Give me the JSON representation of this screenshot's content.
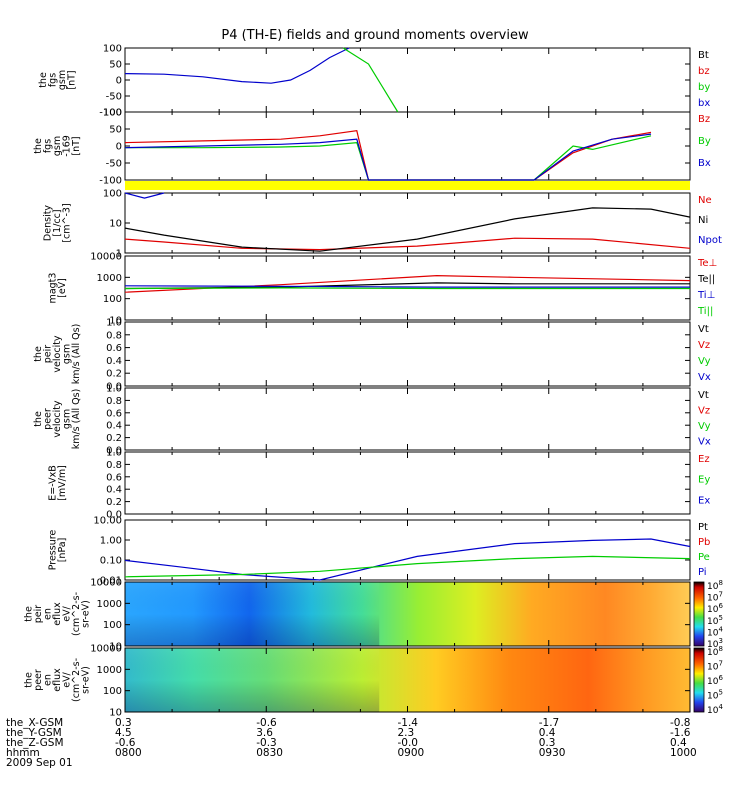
{
  "title": "P4 (TH-E) fields and ground moments overview",
  "colors": {
    "black": "#000000",
    "red": "#e00000",
    "green": "#00cc00",
    "blue": "#0000cc",
    "yellow": "#ffff00"
  },
  "panels": [
    {
      "id": "fgs",
      "ylabel": [
        "the",
        "fgs",
        "gsm",
        "[nT]"
      ],
      "ticks": [
        "100",
        "50",
        "0",
        "-50",
        "-100"
      ],
      "legend": [
        {
          "t": "Bt",
          "c": "black"
        },
        {
          "t": "bz",
          "c": "red"
        },
        {
          "t": "by",
          "c": "green"
        },
        {
          "t": "bx",
          "c": "blue"
        }
      ]
    },
    {
      "id": "fgs169",
      "ylabel": [
        "the",
        "fgs",
        "gsm",
        "-169",
        "[nT]"
      ],
      "ticks": [
        "100",
        "50",
        "0",
        "-50",
        "-100"
      ],
      "legend": [
        {
          "t": "Bz",
          "c": "red"
        },
        {
          "t": "By",
          "c": "green"
        },
        {
          "t": "Bx",
          "c": "blue"
        }
      ]
    },
    {
      "id": "density",
      "ylabel": [
        "Density",
        "[1/cc]",
        "[cm^-3]"
      ],
      "ticks": [
        "100",
        "10",
        "1"
      ],
      "legend": [
        {
          "t": "Ne",
          "c": "red"
        },
        {
          "t": "Ni",
          "c": "black"
        },
        {
          "t": "Npot",
          "c": "blue"
        }
      ]
    },
    {
      "id": "temp",
      "ylabel": [
        "magt3",
        "[eV]"
      ],
      "ticks": [
        "10000",
        "1000",
        "100",
        "10"
      ],
      "legend": [
        {
          "t": "Te⊥",
          "c": "red"
        },
        {
          "t": "Te||",
          "c": "black"
        },
        {
          "t": "Ti⊥",
          "c": "blue"
        },
        {
          "t": "Ti||",
          "c": "green"
        }
      ]
    },
    {
      "id": "peir_vel",
      "ylabel": [
        "the",
        "peir",
        "velocity",
        "gsm",
        "km/s (All Qs)"
      ],
      "ticks": [
        "1.0",
        "0.8",
        "0.6",
        "0.4",
        "0.2",
        "0.0"
      ],
      "legend": [
        {
          "t": "Vt",
          "c": "black"
        },
        {
          "t": "Vz",
          "c": "red"
        },
        {
          "t": "Vy",
          "c": "green"
        },
        {
          "t": "Vx",
          "c": "blue"
        }
      ]
    },
    {
      "id": "peer_vel",
      "ylabel": [
        "the",
        "peer",
        "velocity",
        "gsm",
        "km/s (All Qs)"
      ],
      "ticks": [
        "1.0",
        "0.8",
        "0.6",
        "0.4",
        "0.2",
        "0.0"
      ],
      "legend": [
        {
          "t": "Vt",
          "c": "black"
        },
        {
          "t": "Vz",
          "c": "red"
        },
        {
          "t": "Vy",
          "c": "green"
        },
        {
          "t": "Vx",
          "c": "blue"
        }
      ]
    },
    {
      "id": "efield",
      "ylabel": [
        "E=-VxB",
        "[mV/m]"
      ],
      "ticks": [
        "1.0",
        "0.8",
        "0.6",
        "0.4",
        "0.2",
        "0.0"
      ],
      "legend": [
        {
          "t": "Ez",
          "c": "red"
        },
        {
          "t": "Ey",
          "c": "green"
        },
        {
          "t": "Ex",
          "c": "blue"
        }
      ]
    },
    {
      "id": "pressure",
      "ylabel": [
        "Pressure",
        "[nPa]"
      ],
      "ticks": [
        "10.00",
        "1.00",
        "0.10",
        "0.01"
      ],
      "legend": [
        {
          "t": "Pt",
          "c": "black"
        },
        {
          "t": "Pb",
          "c": "red"
        },
        {
          "t": "Pe",
          "c": "green"
        },
        {
          "t": "Pi",
          "c": "blue"
        }
      ]
    },
    {
      "id": "peir_spec",
      "ylabel": [
        "the",
        "peir",
        "en",
        "eflux",
        "eV/",
        "(cm^2-s-",
        "sr-eV)"
      ],
      "ticks": [
        "10000",
        "1000",
        "100",
        "10"
      ],
      "colorbar": [
        "10^8",
        "10^7",
        "10^6",
        "10^5",
        "10^4",
        "10^3"
      ]
    },
    {
      "id": "peer_spec",
      "ylabel": [
        "the",
        "peer",
        "en",
        "eflux",
        "eV/",
        "(cm^2-s-",
        "sr-eV)"
      ],
      "ticks": [
        "10000",
        "1000",
        "100",
        "10"
      ],
      "colorbar": [
        "10^8",
        "10^7",
        "10^6",
        "10^5",
        "10^4"
      ]
    }
  ],
  "footer": {
    "rows": [
      {
        "label": "the_X-GSM",
        "values": [
          "0.3",
          "-0.6",
          "-1.4",
          "-1.7",
          "-0.8"
        ]
      },
      {
        "label": "the_Y-GSM",
        "values": [
          "4.5",
          "3.6",
          "2.3",
          "0.4",
          "-1.6"
        ]
      },
      {
        "label": "the_Z-GSM",
        "values": [
          "-0.6",
          "-0.3",
          "-0.0",
          "0.3",
          "0.4"
        ]
      },
      {
        "label": "hhmm",
        "values": [
          "0800",
          "0830",
          "0900",
          "0930",
          "1000"
        ]
      }
    ],
    "date": "2009 Sep 01"
  },
  "chart_data": {
    "type": "line",
    "title": "P4 (TH-E) fields and ground moments overview",
    "x_ticks": [
      "0800",
      "0830",
      "0900",
      "0930",
      "1000"
    ],
    "x_range_hhmm": [
      "0800",
      "1000"
    ],
    "panels": [
      {
        "name": "fgs gsm",
        "unit": "nT",
        "ylim": [
          -100,
          100
        ],
        "series": [
          {
            "name": "bx",
            "color": "blue",
            "points": [
              [
                0,
                20
              ],
              [
                20,
                18
              ],
              [
                40,
                10
              ],
              [
                60,
                -5
              ],
              [
                75,
                -10
              ],
              [
                85,
                0
              ],
              [
                95,
                30
              ],
              [
                105,
                70
              ],
              [
                115,
                100
              ]
            ]
          },
          {
            "name": "by",
            "color": "green",
            "points": [
              [
                112,
                100
              ],
              [
                125,
                50
              ],
              [
                140,
                -100
              ]
            ]
          }
        ]
      },
      {
        "name": "fgs gsm -169",
        "unit": "nT",
        "ylim": [
          -100,
          100
        ],
        "series": [
          {
            "name": "Bz",
            "color": "red",
            "points": [
              [
                0,
                10
              ],
              [
                40,
                15
              ],
              [
                80,
                20
              ],
              [
                100,
                30
              ],
              [
                119,
                45
              ],
              [
                125,
                -100
              ],
              [
                210,
                -100
              ],
              [
                230,
                -20
              ],
              [
                250,
                20
              ],
              [
                270,
                40
              ]
            ]
          },
          {
            "name": "By",
            "color": "green",
            "points": [
              [
                0,
                -5
              ],
              [
                40,
                -5
              ],
              [
                80,
                -3
              ],
              [
                100,
                0
              ],
              [
                119,
                10
              ],
              [
                125,
                -100
              ],
              [
                210,
                -100
              ],
              [
                230,
                0
              ],
              [
                240,
                -10
              ],
              [
                270,
                30
              ]
            ]
          },
          {
            "name": "Bx",
            "color": "blue",
            "points": [
              [
                0,
                -5
              ],
              [
                40,
                0
              ],
              [
                80,
                5
              ],
              [
                100,
                10
              ],
              [
                119,
                20
              ],
              [
                125,
                -100
              ],
              [
                210,
                -100
              ],
              [
                230,
                -15
              ],
              [
                250,
                20
              ],
              [
                270,
                35
              ]
            ]
          }
        ]
      },
      {
        "name": "Density",
        "unit": "cm^-3",
        "yscale": "log",
        "ylim": [
          0.5,
          200
        ],
        "series": [
          {
            "name": "Ne",
            "color": "red",
            "points": [
              [
                0,
                2
              ],
              [
                20,
                1.5
              ],
              [
                60,
                0.8
              ],
              [
                100,
                0.7
              ],
              [
                150,
                1
              ],
              [
                200,
                2.2
              ],
              [
                240,
                2
              ],
              [
                290,
                0.8
              ]
            ]
          },
          {
            "name": "Ni",
            "color": "black",
            "points": [
              [
                0,
                6
              ],
              [
                20,
                3
              ],
              [
                60,
                0.9
              ],
              [
                100,
                0.6
              ],
              [
                150,
                2
              ],
              [
                200,
                15
              ],
              [
                240,
                45
              ],
              [
                270,
                40
              ],
              [
                290,
                18
              ]
            ]
          },
          {
            "name": "Npot",
            "color": "blue",
            "points": [
              [
                0,
                200
              ],
              [
                10,
                120
              ],
              [
                20,
                200
              ]
            ]
          }
        ]
      },
      {
        "name": "magt3",
        "unit": "eV",
        "yscale": "log",
        "ylim": [
          10,
          10000
        ],
        "series": [
          {
            "name": "Te⊥",
            "color": "red",
            "points": [
              [
                0,
                200
              ],
              [
                80,
                450
              ],
              [
                160,
                1200
              ],
              [
                200,
                1000
              ],
              [
                290,
                700
              ]
            ]
          },
          {
            "name": "Te||",
            "color": "black",
            "points": [
              [
                0,
                300
              ],
              [
                80,
                350
              ],
              [
                160,
                550
              ],
              [
                200,
                500
              ],
              [
                290,
                500
              ]
            ]
          },
          {
            "name": "Ti⊥",
            "color": "blue",
            "points": [
              [
                0,
                400
              ],
              [
                80,
                380
              ],
              [
                160,
                350
              ],
              [
                290,
                350
              ]
            ]
          },
          {
            "name": "Ti||",
            "color": "green",
            "points": [
              [
                0,
                300
              ],
              [
                80,
                320
              ],
              [
                160,
                300
              ],
              [
                290,
                300
              ]
            ]
          }
        ]
      },
      {
        "name": "peir velocity gsm",
        "unit": "km/s",
        "ylim": [
          0,
          1
        ],
        "series": []
      },
      {
        "name": "peer velocity gsm",
        "unit": "km/s",
        "ylim": [
          0,
          1
        ],
        "series": []
      },
      {
        "name": "E=-VxB",
        "unit": "mV/m",
        "ylim": [
          0,
          1
        ],
        "series": []
      },
      {
        "name": "Pressure",
        "unit": "nPa",
        "yscale": "log",
        "ylim": [
          0.01,
          20
        ],
        "series": [
          {
            "name": "Pi",
            "color": "blue",
            "points": [
              [
                0,
                0.12
              ],
              [
                30,
                0.05
              ],
              [
                60,
                0.02
              ],
              [
                100,
                0.008
              ],
              [
                150,
                0.2
              ],
              [
                200,
                1
              ],
              [
                240,
                1.5
              ],
              [
                270,
                1.8
              ],
              [
                290,
                0.7
              ]
            ]
          },
          {
            "name": "Pe",
            "color": "green",
            "points": [
              [
                0,
                0.015
              ],
              [
                60,
                0.02
              ],
              [
                100,
                0.03
              ],
              [
                150,
                0.08
              ],
              [
                200,
                0.15
              ],
              [
                240,
                0.2
              ],
              [
                290,
                0.15
              ]
            ]
          }
        ]
      }
    ],
    "spectrograms": [
      {
        "name": "peir en eflux",
        "ylim": [
          10,
          10000
        ],
        "yscale": "log",
        "colorbar_range": [
          "10^3",
          "10^8"
        ]
      },
      {
        "name": "peer en eflux",
        "ylim": [
          10,
          10000
        ],
        "yscale": "log",
        "colorbar_range": [
          "10^4",
          "10^8"
        ]
      }
    ]
  }
}
